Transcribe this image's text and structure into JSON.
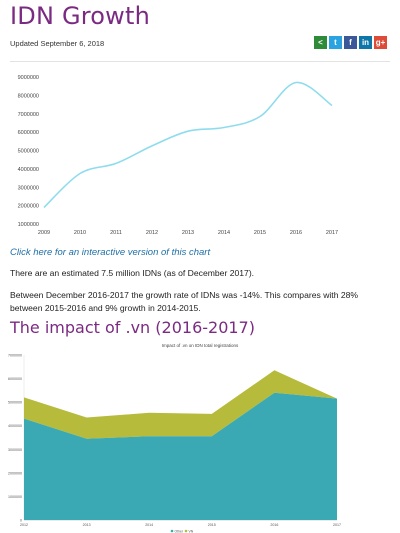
{
  "page": {
    "title": "IDN Growth",
    "updated": "Updated September 6, 2018",
    "chart_link": "Click here for an interactive version of this chart",
    "para1": "There are an estimated 7.5 million IDNs (as of December 2017).",
    "para2": "Between December 2016-2017 the growth rate of IDNs was -14%.  This compares with 28% between 2015-2016 and 9% growth in 2014-2015.",
    "section_title": "The impact of .vn (2016-2017)"
  },
  "share": [
    {
      "icon": "share-icon",
      "glyph": "<",
      "color": "#2e8b3a"
    },
    {
      "icon": "twitter-icon",
      "glyph": "t",
      "color": "#2aa3e0"
    },
    {
      "icon": "facebook-icon",
      "glyph": "f",
      "color": "#3b5998"
    },
    {
      "icon": "linkedin-icon",
      "glyph": "in",
      "color": "#0e76a8"
    },
    {
      "icon": "google-plus-icon",
      "glyph": "g+",
      "color": "#dd4b39"
    }
  ],
  "chart_data": [
    {
      "type": "line",
      "title": "",
      "xlabel": "",
      "ylabel": "",
      "x": [
        "2009",
        "2010",
        "2011",
        "2012",
        "2013",
        "2014",
        "2015",
        "2016",
        "2017"
      ],
      "series": [
        {
          "values": [
            1900000,
            3750000,
            4300000,
            5250000,
            6050000,
            6250000,
            6850000,
            8700000,
            7450000
          ],
          "color": "#8fdcee"
        }
      ],
      "ylim": [
        1000000,
        9000000
      ],
      "yticks": [
        1000000,
        2000000,
        3000000,
        4000000,
        5000000,
        6000000,
        7000000,
        8000000,
        9000000
      ],
      "ytick_labels": [
        "1000000",
        "2000000",
        "3000000",
        "4000000",
        "5000000",
        "6000000",
        "7000000",
        "8000000",
        "9000000"
      ],
      "grid": false
    },
    {
      "type": "area",
      "stacked": true,
      "title": "Impact of .vn on IDN total registrations",
      "xlabel": "",
      "ylabel": "",
      "x": [
        "2012",
        "2013",
        "2014",
        "2015",
        "2016",
        "2017"
      ],
      "series": [
        {
          "name": "Other",
          "values": [
            4300000,
            3450000,
            3550000,
            3550000,
            5400000,
            5150000
          ],
          "color": "#3aa9b3"
        },
        {
          "name": "VN",
          "values": [
            900000,
            900000,
            1000000,
            950000,
            950000,
            0
          ],
          "color": "#b6bb3b"
        }
      ],
      "ylim": [
        0,
        7000000
      ],
      "yticks": [
        0,
        1000000,
        2000000,
        3000000,
        4000000,
        5000000,
        6000000,
        7000000
      ],
      "ytick_labels": [
        "0",
        "1000000",
        "2000000",
        "3000000",
        "4000000",
        "5000000",
        "6000000",
        "7000000"
      ],
      "legend": "bottom",
      "grid": false
    }
  ]
}
